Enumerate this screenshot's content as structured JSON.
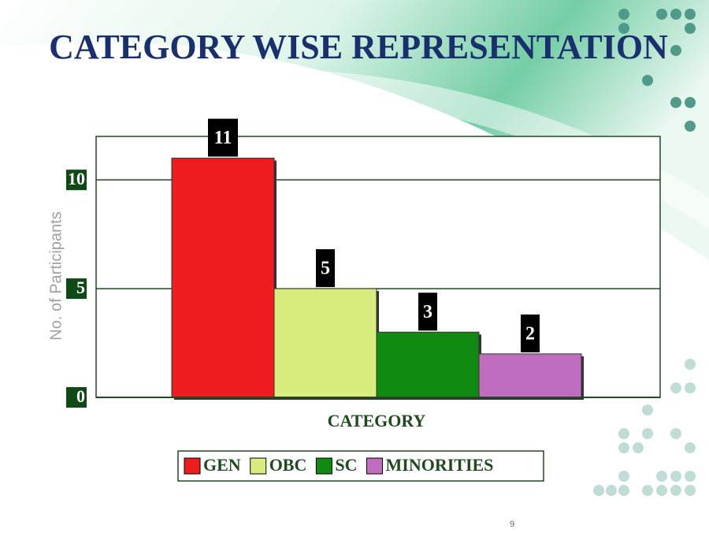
{
  "chart_data": {
    "type": "bar",
    "title": "CATEGORY WISE REPRESENTATION",
    "y_label": "No. of Participants",
    "x_label": "CATEGORY",
    "categories": [
      "GEN",
      "OBC",
      "SC",
      "MINORITIES"
    ],
    "values": [
      11,
      5,
      3,
      2
    ],
    "colors": [
      "#ee1c1c",
      "#d9ec7e",
      "#118a11",
      "#c06cc0"
    ],
    "ylim": [
      0,
      12
    ],
    "yticks": [
      0,
      5,
      10
    ],
    "grid": true,
    "legend": "bottom"
  },
  "page_number": "9"
}
